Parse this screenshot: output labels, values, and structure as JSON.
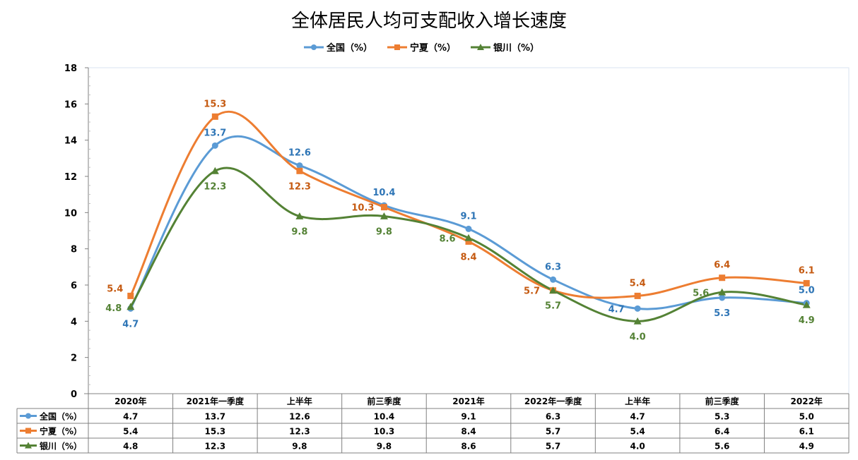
{
  "chart_data": {
    "type": "line",
    "title": "全体居民人均可支配收入增长速度",
    "categories": [
      "2020年",
      "2021年一季度",
      "上半年",
      "前三季度",
      "2021年",
      "2022年一季度",
      "上半年",
      "前三季度",
      "2022年"
    ],
    "series": [
      {
        "name": "全国（%）",
        "color": "#5b9bd5",
        "marker": "circle",
        "values": [
          4.7,
          13.7,
          12.6,
          10.4,
          9.1,
          6.3,
          4.7,
          5.3,
          5.0
        ]
      },
      {
        "name": "宁夏（%）",
        "color": "#ed7d31",
        "marker": "square",
        "values": [
          5.4,
          15.3,
          12.3,
          10.3,
          8.4,
          5.7,
          5.4,
          6.4,
          6.1
        ]
      },
      {
        "name": "银川（%）",
        "color": "#548235",
        "marker": "triangle",
        "values": [
          4.8,
          12.3,
          9.8,
          9.8,
          8.6,
          5.7,
          4.0,
          5.6,
          4.9
        ]
      }
    ],
    "ylim": [
      0,
      18
    ],
    "yticks": [
      0,
      2,
      4,
      6,
      8,
      10,
      12,
      14,
      16,
      18
    ],
    "legend_position": "top",
    "data_table": true,
    "grid": false
  }
}
